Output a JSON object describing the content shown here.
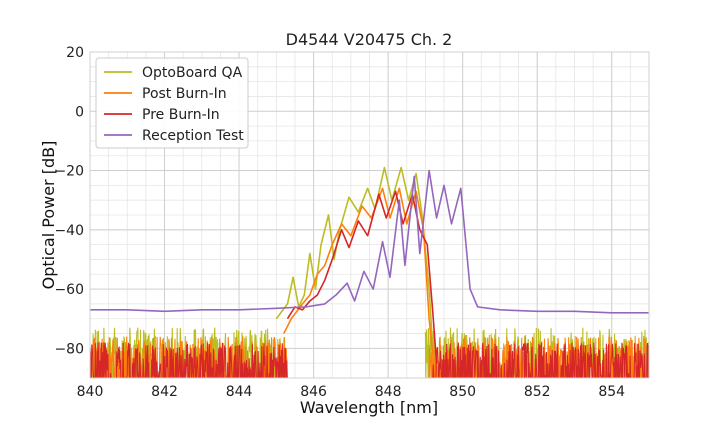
{
  "chart_data": {
    "type": "line",
    "title": "D4544 V20475 Ch. 2",
    "xlabel": "Wavelength [nm]",
    "ylabel": "Optical Power [dB]",
    "xlim": [
      840,
      855
    ],
    "ylim": [
      -90,
      20
    ],
    "x_major_ticks": [
      840,
      842,
      844,
      846,
      848,
      850,
      852,
      854
    ],
    "x_tick_labels": [
      "840",
      "842",
      "844",
      "846",
      "848",
      "850",
      "852",
      "854"
    ],
    "y_major_ticks": [
      -80,
      -60,
      -40,
      -20,
      0,
      20
    ],
    "y_tick_labels": [
      "−80",
      "−60",
      "−40",
      "−20",
      "0",
      "20"
    ],
    "grid": true,
    "legend_position": "top-left",
    "series": [
      {
        "name": "OptoBoard QA",
        "color": "#bcbd22",
        "noise_floor": {
          "from": [
            840,
            845.3
          ],
          "to": [
            849.0,
            855
          ],
          "range": [
            -90,
            -73
          ]
        },
        "points": [
          [
            845.0,
            -70
          ],
          [
            845.3,
            -65
          ],
          [
            845.45,
            -56
          ],
          [
            845.6,
            -66
          ],
          [
            845.75,
            -62
          ],
          [
            845.9,
            -48
          ],
          [
            846.05,
            -60
          ],
          [
            846.2,
            -45
          ],
          [
            846.4,
            -35
          ],
          [
            846.55,
            -50
          ],
          [
            846.7,
            -40
          ],
          [
            846.95,
            -29
          ],
          [
            847.2,
            -34
          ],
          [
            847.45,
            -26
          ],
          [
            847.65,
            -33
          ],
          [
            847.9,
            -19
          ],
          [
            848.1,
            -30
          ],
          [
            848.35,
            -19
          ],
          [
            848.55,
            -30
          ],
          [
            848.75,
            -21
          ],
          [
            848.9,
            -34
          ],
          [
            849.1,
            -60
          ],
          [
            849.2,
            -80
          ]
        ]
      },
      {
        "name": "Post Burn-In",
        "color": "#ff7f0e",
        "noise_floor": {
          "from": [
            840,
            845.3
          ],
          "to": [
            849.1,
            855
          ],
          "range": [
            -90,
            -76
          ]
        },
        "points": [
          [
            845.2,
            -75
          ],
          [
            845.4,
            -70
          ],
          [
            845.7,
            -65
          ],
          [
            845.9,
            -62
          ],
          [
            846.1,
            -55
          ],
          [
            846.3,
            -52
          ],
          [
            846.5,
            -45
          ],
          [
            846.75,
            -38
          ],
          [
            847.0,
            -42
          ],
          [
            847.3,
            -32
          ],
          [
            847.55,
            -36
          ],
          [
            847.85,
            -26
          ],
          [
            848.05,
            -36
          ],
          [
            848.3,
            -26
          ],
          [
            848.5,
            -38
          ],
          [
            848.75,
            -27
          ],
          [
            848.95,
            -40
          ],
          [
            849.1,
            -70
          ],
          [
            849.2,
            -82
          ]
        ]
      },
      {
        "name": "Pre Burn-In",
        "color": "#d62728",
        "noise_floor": {
          "from": [
            840,
            845.3
          ],
          "to": [
            849.2,
            855
          ],
          "range": [
            -90,
            -78
          ]
        },
        "points": [
          [
            845.3,
            -70
          ],
          [
            845.5,
            -66
          ],
          [
            845.7,
            -67
          ],
          [
            845.9,
            -64
          ],
          [
            846.1,
            -62
          ],
          [
            846.3,
            -57
          ],
          [
            846.5,
            -50
          ],
          [
            846.75,
            -40
          ],
          [
            846.95,
            -46
          ],
          [
            847.2,
            -37
          ],
          [
            847.45,
            -42
          ],
          [
            847.75,
            -28
          ],
          [
            847.95,
            -36
          ],
          [
            848.2,
            -27
          ],
          [
            848.4,
            -38
          ],
          [
            848.65,
            -28
          ],
          [
            848.85,
            -40
          ],
          [
            849.05,
            -45
          ],
          [
            849.2,
            -68
          ],
          [
            849.3,
            -85
          ]
        ]
      },
      {
        "name": "Reception Test",
        "color": "#9467bd",
        "points": [
          [
            840.0,
            -67
          ],
          [
            841.0,
            -67
          ],
          [
            842.0,
            -67.5
          ],
          [
            843.0,
            -67
          ],
          [
            844.0,
            -67
          ],
          [
            845.0,
            -66.5
          ],
          [
            845.8,
            -66
          ],
          [
            846.3,
            -65
          ],
          [
            846.6,
            -62
          ],
          [
            846.9,
            -58
          ],
          [
            847.1,
            -64
          ],
          [
            847.35,
            -54
          ],
          [
            847.6,
            -60
          ],
          [
            847.85,
            -44
          ],
          [
            848.05,
            -56
          ],
          [
            848.3,
            -30
          ],
          [
            848.45,
            -52
          ],
          [
            848.7,
            -22
          ],
          [
            848.85,
            -48
          ],
          [
            849.1,
            -20
          ],
          [
            849.3,
            -36
          ],
          [
            849.5,
            -25
          ],
          [
            849.7,
            -38
          ],
          [
            849.95,
            -26
          ],
          [
            850.2,
            -60
          ],
          [
            850.4,
            -66
          ],
          [
            851.0,
            -67
          ],
          [
            852.0,
            -67.5
          ],
          [
            853.0,
            -67.5
          ],
          [
            854.0,
            -68
          ],
          [
            855.0,
            -68
          ]
        ]
      }
    ]
  }
}
